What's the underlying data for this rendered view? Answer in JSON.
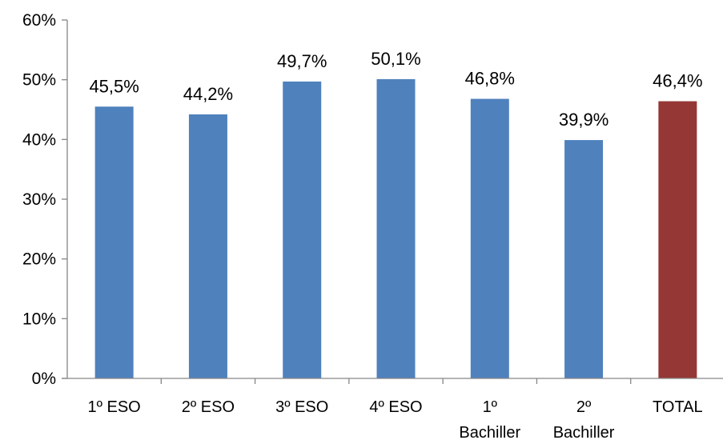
{
  "chart_data": {
    "type": "bar",
    "title": "",
    "xlabel": "",
    "ylabel": "",
    "ylim": [
      0,
      60
    ],
    "yticks": [
      0,
      10,
      20,
      30,
      40,
      50,
      60
    ],
    "ytick_labels": [
      "0%",
      "10%",
      "20%",
      "30%",
      "40%",
      "50%",
      "60%"
    ],
    "grid": false,
    "legend": "none",
    "categories": [
      [
        "1º ESO"
      ],
      [
        "2º ESO"
      ],
      [
        "3º ESO"
      ],
      [
        "4º ESO"
      ],
      [
        "1º",
        "Bachiller"
      ],
      [
        "2º",
        "Bachiller"
      ],
      [
        "TOTAL"
      ]
    ],
    "values": [
      45.5,
      44.2,
      49.7,
      50.1,
      46.8,
      39.9,
      46.4
    ],
    "data_labels": [
      "45,5%",
      "44,2%",
      "49,7%",
      "50,1%",
      "46,8%",
      "39,9%",
      "46,4%"
    ],
    "colors": [
      "#4F81BD",
      "#4F81BD",
      "#4F81BD",
      "#4F81BD",
      "#4F81BD",
      "#4F81BD",
      "#953735"
    ],
    "axis_color": "#868686"
  }
}
